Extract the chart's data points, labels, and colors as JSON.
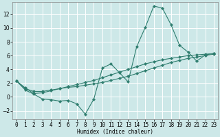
{
  "background_color": "#cde8e8",
  "grid_color": "#ffffff",
  "line_color": "#2e7d6e",
  "x_label": "Humidex (Indice chaleur)",
  "xlim": [
    -0.5,
    23.5
  ],
  "ylim": [
    -3.2,
    13.8
  ],
  "yticks": [
    -2,
    0,
    2,
    4,
    6,
    8,
    10,
    12
  ],
  "xtick_labels": [
    "0",
    "1",
    "2",
    "3",
    "4",
    "5",
    "6",
    "7",
    "8",
    "9",
    "10",
    "11",
    "12",
    "13",
    "14",
    "15",
    "16",
    "17",
    "18",
    "19",
    "20",
    "21",
    "22",
    "23"
  ],
  "series0_x": [
    0,
    1,
    2,
    3,
    4,
    5,
    6,
    7,
    8,
    9,
    10,
    11,
    12,
    13,
    14,
    15,
    16,
    17,
    18,
    19,
    20,
    21,
    22,
    23
  ],
  "series0_y": [
    2.3,
    1.0,
    0.4,
    -0.3,
    -0.4,
    -0.6,
    -0.5,
    -1.0,
    -2.5,
    -0.3,
    4.2,
    4.8,
    3.5,
    2.2,
    7.3,
    10.1,
    13.2,
    12.9,
    10.5,
    7.5,
    6.5,
    5.2,
    6.1,
    6.3
  ],
  "series1_x": [
    0,
    1,
    2,
    3,
    4,
    5,
    6,
    7,
    8,
    9,
    10,
    11,
    12,
    13,
    14,
    15,
    16,
    17,
    18,
    19,
    20,
    21,
    22,
    23
  ],
  "series1_y": [
    2.3,
    1.2,
    0.8,
    0.8,
    1.0,
    1.2,
    1.4,
    1.5,
    1.7,
    1.9,
    2.1,
    2.4,
    2.7,
    3.0,
    3.4,
    3.8,
    4.2,
    4.6,
    5.0,
    5.3,
    5.6,
    5.8,
    6.0,
    6.2
  ],
  "series2_x": [
    0,
    1,
    2,
    3,
    4,
    5,
    6,
    7,
    8,
    9,
    10,
    11,
    12,
    13,
    14,
    15,
    16,
    17,
    18,
    19,
    20,
    21,
    22,
    23
  ],
  "series2_y": [
    2.3,
    1.3,
    0.5,
    0.6,
    0.9,
    1.2,
    1.5,
    1.8,
    2.1,
    2.4,
    2.8,
    3.2,
    3.6,
    4.0,
    4.4,
    4.8,
    5.1,
    5.4,
    5.6,
    5.8,
    6.0,
    6.1,
    6.2,
    6.3
  ]
}
